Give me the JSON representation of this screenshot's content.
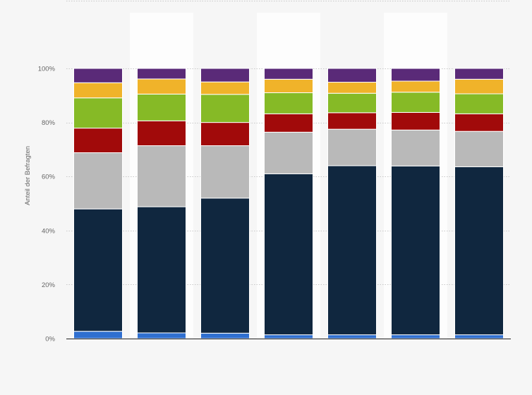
{
  "chart_data": {
    "type": "bar",
    "stacked": true,
    "ylabel": "Anteil der Befragten",
    "ylim": [
      0,
      100
    ],
    "y_ticks": [
      "0%",
      "20%",
      "40%",
      "60%",
      "80%",
      "100%"
    ],
    "grid": true,
    "bar_count": 7,
    "series": [
      {
        "color": "#2f6fd0",
        "values": [
          2.7,
          2.1,
          2.0,
          1.4,
          1.4,
          1.4,
          1.4
        ]
      },
      {
        "color": "#10273f",
        "values": [
          45.3,
          46.7,
          50.0,
          59.6,
          62.6,
          62.5,
          62.2
        ]
      },
      {
        "color": "#b9b9b9",
        "values": [
          20.8,
          22.6,
          19.4,
          15.4,
          13.5,
          13.3,
          13.1
        ]
      },
      {
        "color": "#a10a0a",
        "values": [
          9.1,
          9.2,
          8.6,
          6.8,
          6.1,
          6.5,
          6.5
        ]
      },
      {
        "color": "#86ba26",
        "values": [
          11.2,
          9.9,
          10.4,
          7.8,
          7.2,
          7.5,
          7.4
        ]
      },
      {
        "color": "#f0b32a",
        "values": [
          5.6,
          5.6,
          4.6,
          5.0,
          4.1,
          4.1,
          5.4
        ]
      },
      {
        "color": "#5a2a78",
        "values": [
          5.3,
          3.9,
          5.0,
          4.0,
          5.1,
          4.7,
          4.0
        ]
      }
    ]
  }
}
